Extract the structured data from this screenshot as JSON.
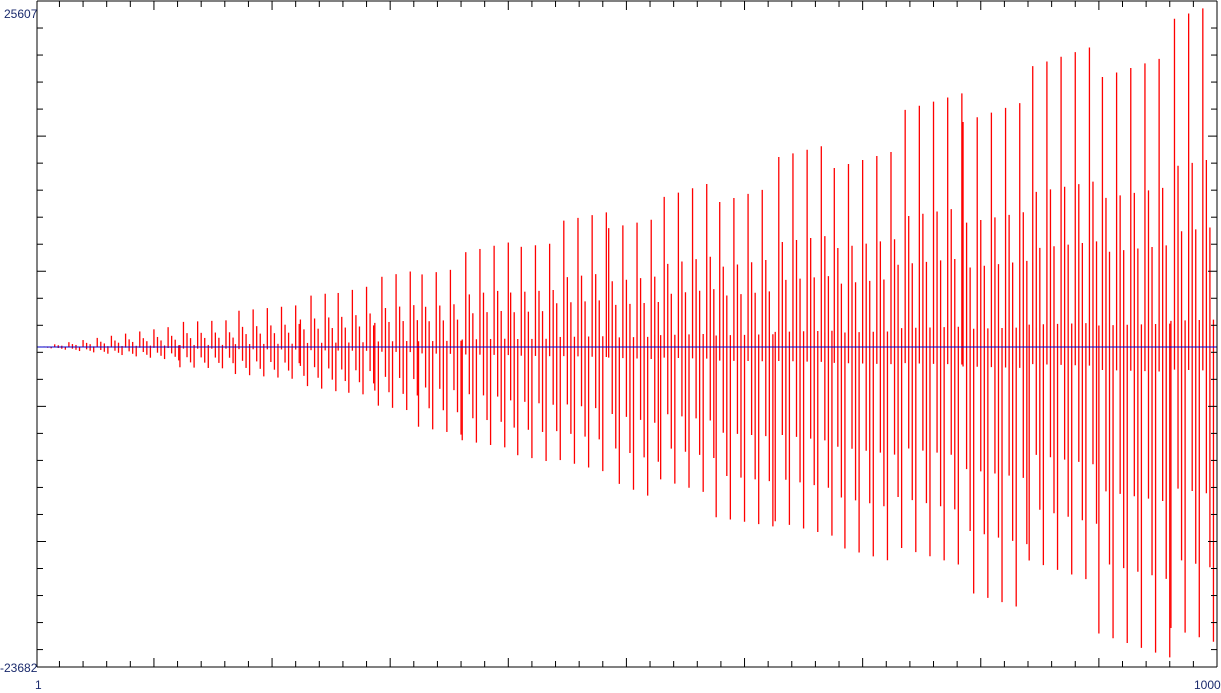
{
  "chart_data": {
    "type": "needle-range",
    "title": "",
    "xlabel": "",
    "ylabel": "",
    "xlim": [
      1,
      1000
    ],
    "ylim": [
      -23682,
      25607
    ],
    "y_max_label": "25607",
    "y_min_label": "-23682",
    "x_min_label": "1",
    "x_max_label": "1000",
    "x_tick_step": 20,
    "y_tick_step": 2000,
    "grid": false,
    "zero_line": true,
    "colors": {
      "series": "#ff0000",
      "zero_line": "#0000cc",
      "axis": "#000000",
      "labels": "#1a2a6c"
    },
    "blocks": [
      {
        "from": 1,
        "to": 122,
        "high": [
          0,
          1600
        ],
        "low": [
          0,
          -1000
        ]
      },
      {
        "from": 122,
        "to": 169,
        "high": [
          1850,
          2000
        ],
        "low": [
          -1500,
          -1600
        ]
      },
      {
        "from": 169,
        "to": 224,
        "high": [
          2660,
          3110
        ],
        "low": [
          -2000,
          -2400
        ]
      },
      {
        "from": 224,
        "to": 256,
        "high": [
          3700,
          4070
        ],
        "low": [
          -2800,
          -3300
        ]
      },
      {
        "from": 256,
        "to": 287,
        "high": [
          4000,
          4590
        ],
        "low": [
          -3300,
          -3600
        ]
      },
      {
        "from": 287,
        "to": 324,
        "high": [
          5100,
          5700
        ],
        "low": [
          -4300,
          -4800
        ]
      },
      {
        "from": 324,
        "to": 361,
        "high": [
          5330,
          5850
        ],
        "low": [
          -5900,
          -6500
        ]
      },
      {
        "from": 361,
        "to": 402,
        "high": [
          6960,
          7770
        ],
        "low": [
          -6900,
          -7500
        ]
      },
      {
        "from": 402,
        "to": 441,
        "high": [
          7330,
          7700
        ],
        "low": [
          -7900,
          -8600
        ]
      },
      {
        "from": 441,
        "to": 485,
        "high": [
          9250,
          10000
        ],
        "low": [
          -8300,
          -9300
        ]
      },
      {
        "from": 485,
        "to": 529,
        "high": [
          8800,
          9550
        ],
        "low": [
          -9800,
          -11400
        ]
      },
      {
        "from": 529,
        "to": 576,
        "high": [
          11030,
          12280
        ],
        "low": [
          -9800,
          -11000
        ]
      },
      {
        "from": 576,
        "to": 626,
        "high": [
          10660,
          11900
        ],
        "low": [
          -12600,
          -13300
        ]
      },
      {
        "from": 626,
        "to": 676,
        "high": [
          14000,
          15100
        ],
        "low": [
          -12900,
          -14000
        ]
      },
      {
        "from": 676,
        "to": 730,
        "high": [
          13250,
          14580
        ],
        "low": [
          -14700,
          -16000
        ]
      },
      {
        "from": 730,
        "to": 785,
        "high": [
          17400,
          18800
        ],
        "low": [
          -14800,
          -16200
        ]
      },
      {
        "from": 785,
        "to": 841,
        "high": [
          16650,
          18280
        ],
        "low": [
          -18000,
          -19500
        ]
      },
      {
        "from": 841,
        "to": 900,
        "high": [
          20700,
          22400
        ],
        "low": [
          -15800,
          -17500
        ]
      },
      {
        "from": 900,
        "to": 961,
        "high": [
          19900,
          21600
        ],
        "low": [
          -21200,
          -23000
        ]
      },
      {
        "from": 961,
        "to": 1000,
        "high": [
          24200,
          25450
        ],
        "low": [
          -20800,
          -21900
        ]
      }
    ]
  }
}
